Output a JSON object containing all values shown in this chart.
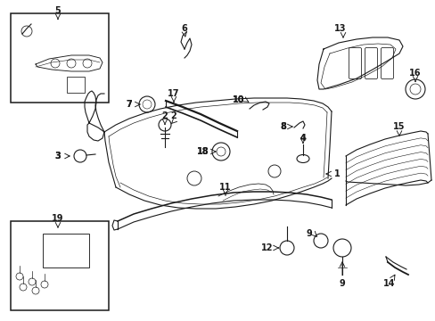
{
  "bg_color": "#ffffff",
  "line_color": "#1a1a1a",
  "figsize": [
    4.89,
    3.6
  ],
  "dpi": 100,
  "lw": 0.8
}
